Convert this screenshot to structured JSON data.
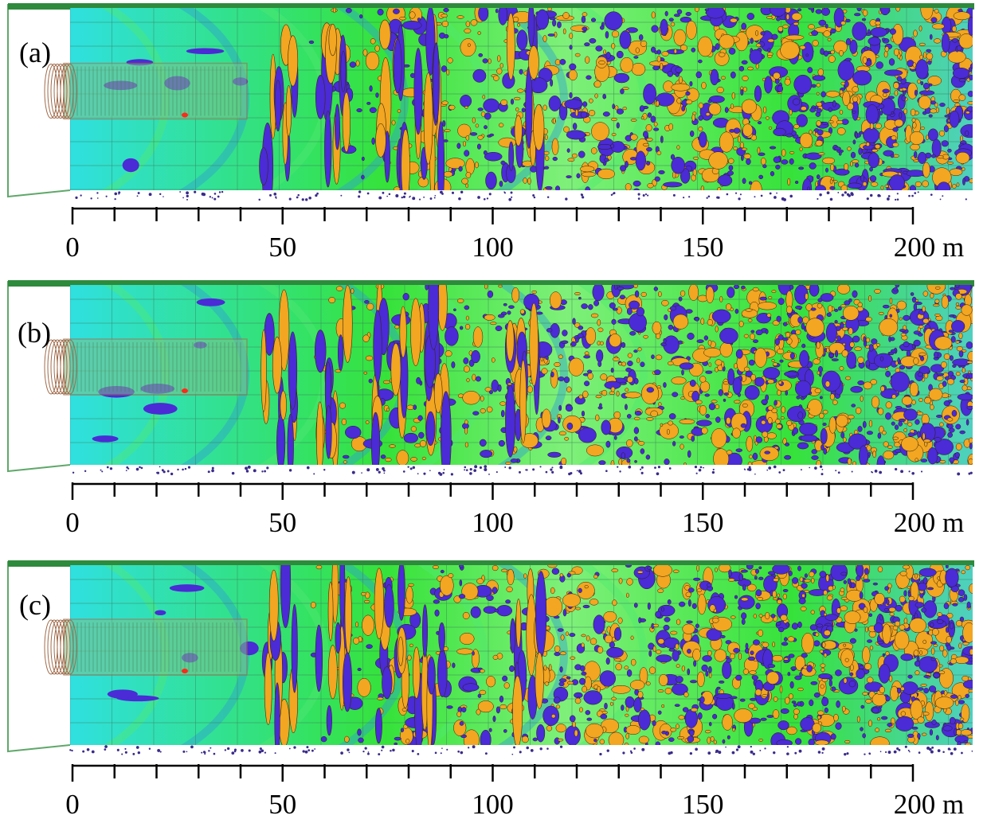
{
  "figure": {
    "panels": [
      {
        "label": "(a)",
        "axis": {
          "ticks": [
            0,
            50,
            100,
            150,
            200
          ],
          "unit": "m"
        }
      },
      {
        "label": "(b)",
        "axis": {
          "ticks": [
            0,
            50,
            100,
            150,
            200
          ],
          "unit": "m"
        }
      },
      {
        "label": "(c)",
        "axis": {
          "ticks": [
            0,
            50,
            100,
            150,
            200
          ],
          "unit": "m"
        }
      }
    ]
  },
  "colors": {
    "frame": "#5fa86a",
    "background_green": "#36e23a",
    "cyan": "#2fe0e0",
    "blue": "#4a2bd6",
    "orange": "#f2a621",
    "tunnel": "#a06a4a",
    "red": "#ff2a1a"
  }
}
